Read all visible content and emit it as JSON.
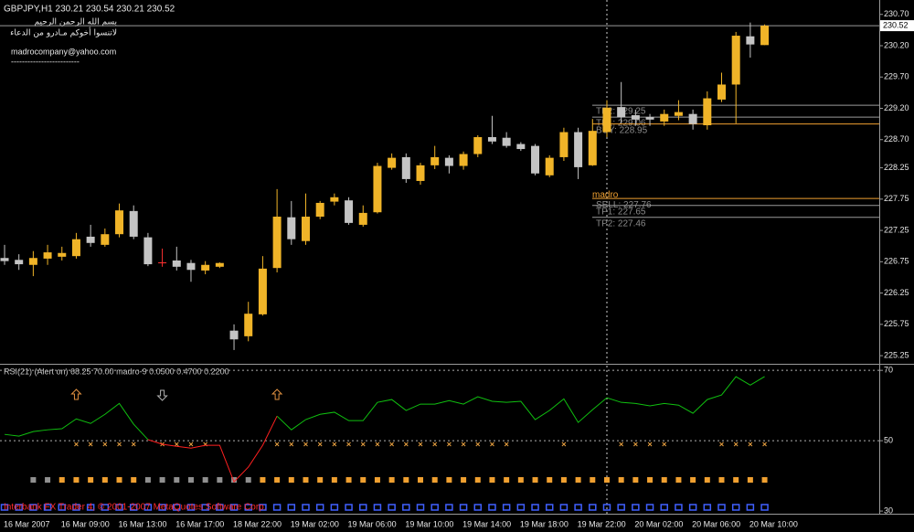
{
  "chart_data": [
    {
      "type": "candlestick",
      "title": "GBPJPY,H1  230.21 230.54 230.21 230.52",
      "notes": [
        "بسم الله الرحمن الرحيم",
        "لاتنسوا أخوكم مـادرو من الدعاء",
        "madrocompany@yahoo.com",
        "-------------------------"
      ],
      "categories": [
        "16 Mar 2007",
        null,
        null,
        null,
        "16 Mar 09:00",
        null,
        null,
        null,
        "16 Mar 13:00",
        null,
        null,
        null,
        "16 Mar 17:00",
        null,
        null,
        null,
        "18 Mar 22:00",
        null,
        null,
        null,
        "19 Mar 02:00",
        null,
        null,
        null,
        "19 Mar 06:00",
        null,
        null,
        null,
        "19 Mar 10:00",
        null,
        null,
        null,
        "19 Mar 14:00",
        null,
        null,
        null,
        "19 Mar 18:00",
        null,
        null,
        null,
        "19 Mar 22:00",
        null,
        null,
        null,
        "20 Mar 02:00",
        null,
        null,
        null,
        "20 Mar 06:00",
        null,
        null,
        null,
        "20 Mar 10:00",
        null
      ],
      "open": [
        226.81,
        226.78,
        226.7,
        226.8,
        226.83,
        226.84,
        227.15,
        227.02,
        227.19,
        227.56,
        227.14,
        226.74,
        226.77,
        226.73,
        226.61,
        226.67,
        225.65,
        225.56,
        225.91,
        226.65,
        227.46,
        227.08,
        227.47,
        227.71,
        227.73,
        227.34,
        227.54,
        228.25,
        228.42,
        228.04,
        228.29,
        228.41,
        228.28,
        228.47,
        228.74,
        228.73,
        228.63,
        228.6,
        228.13,
        228.42,
        228.82,
        228.29,
        228.82,
        229.22,
        229.09,
        229.06,
        228.99,
        229.08,
        229.11,
        228.93,
        229.34,
        229.58,
        230.35,
        230.21
      ],
      "high": [
        227.02,
        226.87,
        226.92,
        227.02,
        226.99,
        227.21,
        227.34,
        227.28,
        227.68,
        227.65,
        227.21,
        226.96,
        226.99,
        226.78,
        226.76,
        226.74,
        225.75,
        226.11,
        226.84,
        227.91,
        227.72,
        227.84,
        227.72,
        227.84,
        227.78,
        227.65,
        228.33,
        228.48,
        228.48,
        228.33,
        228.6,
        228.45,
        228.51,
        228.77,
        229.08,
        228.82,
        228.66,
        228.63,
        228.45,
        228.89,
        228.89,
        229.03,
        229.33,
        229.62,
        229.18,
        229.11,
        229.18,
        229.33,
        229.18,
        229.47,
        229.77,
        230.42,
        230.57,
        230.54
      ],
      "low": [
        226.7,
        226.62,
        226.52,
        226.7,
        226.77,
        226.8,
        226.99,
        226.99,
        227.14,
        227.11,
        226.68,
        226.67,
        226.61,
        226.43,
        226.55,
        226.65,
        225.34,
        225.48,
        225.89,
        226.58,
        227.02,
        227.02,
        227.43,
        227.65,
        227.34,
        227.31,
        227.52,
        228.22,
        228.01,
        227.98,
        228.23,
        228.16,
        228.22,
        228.42,
        228.63,
        228.57,
        228.52,
        228.13,
        228.1,
        228.36,
        228.07,
        228.28,
        228.74,
        228.96,
        228.92,
        228.92,
        228.92,
        229.01,
        228.86,
        228.86,
        229.3,
        228.96,
        230.01,
        230.21
      ],
      "close": [
        226.76,
        226.71,
        226.81,
        226.9,
        226.89,
        227.11,
        227.05,
        227.19,
        227.57,
        227.15,
        226.71,
        226.74,
        226.67,
        226.62,
        226.7,
        226.73,
        225.51,
        225.92,
        226.64,
        227.47,
        227.11,
        227.47,
        227.69,
        227.78,
        227.37,
        227.53,
        228.28,
        228.41,
        228.07,
        228.29,
        228.42,
        228.28,
        228.47,
        228.74,
        228.67,
        228.6,
        228.55,
        228.16,
        228.41,
        228.82,
        228.26,
        228.84,
        229.21,
        229.06,
        229.02,
        229.02,
        229.11,
        229.14,
        228.95,
        229.36,
        229.58,
        230.36,
        230.22,
        230.52
      ],
      "up_color": "#f0b428",
      "down_color": "#c4c4c4",
      "doji_color": "#ff3030",
      "ylim": [
        225.12,
        230.93
      ],
      "yticks": [
        {
          "value": 230.7,
          "label": "230.70"
        },
        {
          "value": 230.2,
          "label": "230.20"
        },
        {
          "value": 229.7,
          "label": "229.70"
        },
        {
          "value": 229.2,
          "label": "229.20"
        },
        {
          "value": 228.7,
          "label": "228.70"
        },
        228.25,
        227.75,
        227.25,
        226.75,
        226.25,
        225.75,
        225.25
      ],
      "current_price": 230.52,
      "levels": [
        {
          "label": "TP2: 229.25",
          "value": 229.25,
          "color": "#9a9a9a"
        },
        {
          "label": "TP1: 229.06",
          "value": 229.06,
          "color": "#9a9a9a"
        },
        {
          "label": "BUY: 228.95",
          "value": 228.95,
          "color": "#f0a030"
        },
        {
          "label": "SELL: 227.76",
          "value": 227.76,
          "color": "#f0a030"
        },
        {
          "label": "TP1: 227.65",
          "value": 227.65,
          "color": "#9a9a9a"
        },
        {
          "label": "TP2: 227.46",
          "value": 227.46,
          "color": "#9a9a9a"
        }
      ],
      "annotation": "madro"
    },
    {
      "type": "line",
      "title": "RSI(21) (Alert on) 68.25 70.00  madro-9 0.0500 0.4700 0.2200",
      "values": [
        51.8,
        51.3,
        52.6,
        53.1,
        53.4,
        56.2,
        54.9,
        57.5,
        60.6,
        54.7,
        50.3,
        49.0,
        48.4,
        47.9,
        48.7,
        48.7,
        38.3,
        42.5,
        48.7,
        57.0,
        53.1,
        56.0,
        57.5,
        58.1,
        55.7,
        55.7,
        60.9,
        61.7,
        58.6,
        60.4,
        60.4,
        61.4,
        60.4,
        62.5,
        61.2,
        60.9,
        61.2,
        56.0,
        58.6,
        61.9,
        55.2,
        58.8,
        62.2,
        60.9,
        60.6,
        59.9,
        60.6,
        60.1,
        57.8,
        61.7,
        63.0,
        68.2,
        65.8,
        68.25
      ],
      "color_above": "#10c010",
      "color_below": "#ff2020",
      "ylim": [
        29.5,
        71.6
      ],
      "yticks": [
        30,
        50,
        70
      ],
      "levels": [
        70,
        50
      ],
      "arrows": [
        {
          "index": 5,
          "direction": "up",
          "color": "#e09040"
        },
        {
          "index": 11,
          "direction": "down",
          "color": "#b0b0b0"
        },
        {
          "index": 19,
          "direction": "up",
          "color": "#e09040"
        }
      ],
      "rows": [
        {
          "shape": "cross",
          "color": "#e8a040",
          "at": [
            5,
            6,
            7,
            8,
            9,
            11,
            12,
            13,
            14,
            19,
            20,
            21,
            22,
            23,
            24,
            25,
            26,
            27,
            28,
            29,
            30,
            31,
            32,
            33,
            34,
            35,
            39,
            43,
            44,
            45,
            46,
            50,
            51,
            52,
            53
          ]
        },
        {
          "shape": "square",
          "color": "#909090",
          "at": [
            2,
            3,
            10,
            11,
            12,
            13,
            14,
            15,
            16,
            17
          ]
        },
        {
          "shape": "square",
          "color": "#f0a030",
          "at": [
            4,
            5,
            6,
            7,
            8,
            9,
            18,
            19,
            20,
            21,
            22,
            23,
            24,
            25,
            26,
            27,
            28,
            29,
            30,
            31,
            32,
            33,
            34,
            35,
            36,
            37,
            38,
            39,
            40,
            41,
            42,
            43,
            44,
            45,
            46,
            47,
            48,
            49,
            50,
            51,
            52,
            53
          ]
        },
        {
          "shape": "box",
          "color": "#4060ff",
          "at": [
            0,
            1,
            2,
            3,
            4,
            5,
            6,
            7,
            8,
            9,
            10,
            11,
            12,
            13,
            14,
            15,
            16,
            17,
            18,
            19,
            20,
            21,
            22,
            23,
            24,
            25,
            26,
            27,
            28,
            29,
            30,
            31,
            32,
            33,
            34,
            35,
            36,
            37,
            38,
            39,
            40,
            41,
            42,
            43,
            44,
            45,
            46,
            47,
            48,
            49,
            50,
            51,
            52,
            53
          ]
        }
      ],
      "footer": "Interbank FX Trader 4, © 2001-2007 MetaQuotes Software Corp."
    }
  ]
}
